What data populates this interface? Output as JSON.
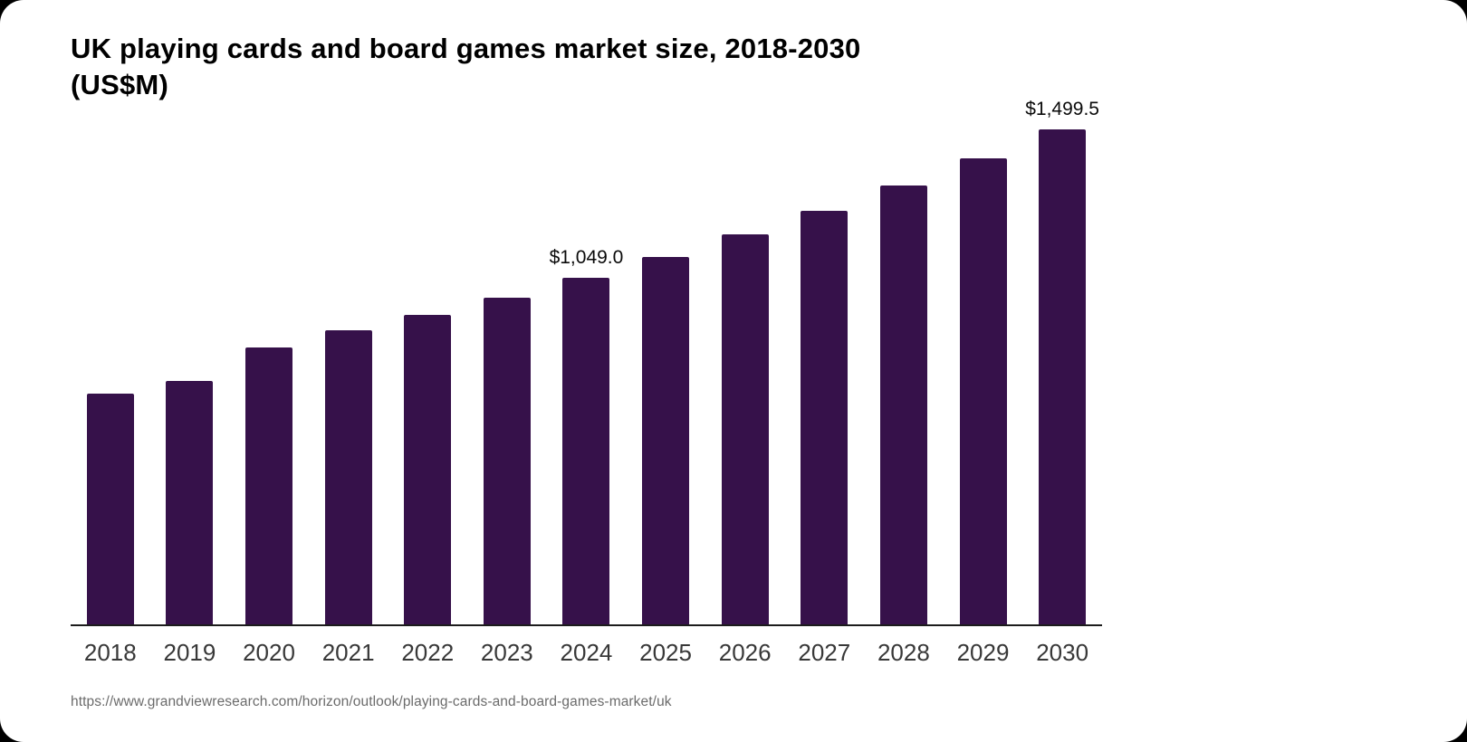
{
  "header": {
    "title_line1": "UK playing cards and board games market size, 2018-2030",
    "title_line2": "(US$M)"
  },
  "source": {
    "url_text": "https://www.grandviewresearch.com/horizon/outlook/playing-cards-and-board-games-market/uk"
  },
  "chart_data": {
    "type": "bar",
    "title": "UK playing cards and board games market size, 2018-2030 (US$M)",
    "categories": [
      "2018",
      "2019",
      "2020",
      "2021",
      "2022",
      "2023",
      "2024",
      "2025",
      "2026",
      "2027",
      "2028",
      "2029",
      "2030"
    ],
    "values": [
      699,
      737,
      838,
      891,
      937,
      989,
      1049.0,
      1113,
      1181,
      1253,
      1330,
      1412,
      1499.5
    ],
    "data_labels": [
      null,
      null,
      null,
      null,
      null,
      null,
      "$1,049.0",
      null,
      null,
      null,
      null,
      null,
      "$1,499.5"
    ],
    "xlabel": "",
    "ylabel": "",
    "ylim": [
      0,
      1540
    ],
    "grid": false,
    "legend": false,
    "bar_color": "#36114A",
    "axis_line_color": "#1c1c1c",
    "tick_label_color": "#383838",
    "value_label_color": "#0a0a0a",
    "background_color": "#ffffff"
  }
}
